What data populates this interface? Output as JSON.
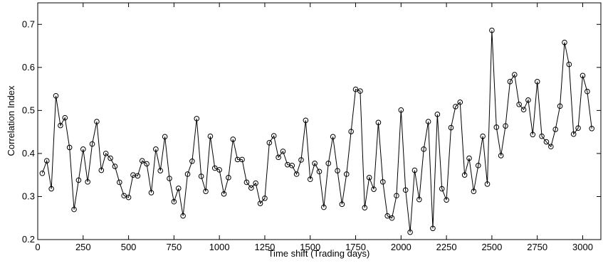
{
  "chart_data": {
    "type": "line",
    "marker": "circle",
    "xlabel": "Time shift (Trading days)",
    "ylabel": "Correlation Index",
    "xlim": [
      0,
      3100
    ],
    "ylim": [
      0.2,
      0.75
    ],
    "xticks": [
      0,
      250,
      500,
      750,
      1000,
      1250,
      1500,
      1750,
      2000,
      2250,
      2500,
      2750,
      3000
    ],
    "yticks": [
      0.2,
      0.3,
      0.4,
      0.5,
      0.6,
      0.7
    ],
    "ytick_labels": [
      "0.2",
      "0.3",
      "0.4",
      "0.5",
      "0.6",
      "0.7"
    ],
    "grid": false,
    "series": [
      {
        "x": [
          25,
          50,
          75,
          100,
          125,
          150,
          175,
          200,
          225,
          250,
          275,
          300,
          325,
          350,
          375,
          400,
          425,
          450,
          475,
          500,
          525,
          550,
          575,
          600,
          625,
          650,
          675,
          700,
          725,
          750,
          775,
          800,
          825,
          850,
          875,
          900,
          925,
          950,
          975,
          1000,
          1025,
          1050,
          1075,
          1100,
          1125,
          1150,
          1175,
          1200,
          1225,
          1250,
          1275,
          1300,
          1325,
          1350,
          1375,
          1400,
          1425,
          1450,
          1475,
          1500,
          1525,
          1550,
          1575,
          1600,
          1625,
          1650,
          1675,
          1700,
          1725,
          1750,
          1775,
          1800,
          1825,
          1850,
          1875,
          1900,
          1925,
          1950,
          1975,
          2000,
          2025,
          2050,
          2075,
          2100,
          2125,
          2150,
          2175,
          2200,
          2225,
          2250,
          2275,
          2300,
          2325,
          2350,
          2375,
          2400,
          2425,
          2450,
          2475,
          2500,
          2525,
          2550,
          2575,
          2600,
          2625,
          2650,
          2675,
          2700,
          2725,
          2750,
          2775,
          2800,
          2825,
          2850,
          2875,
          2900,
          2925,
          2950,
          2975,
          3000,
          3025,
          3050
        ],
        "y": [
          0.354,
          0.383,
          0.318,
          0.534,
          0.465,
          0.483,
          0.414,
          0.27,
          0.338,
          0.41,
          0.334,
          0.422,
          0.474,
          0.361,
          0.4,
          0.389,
          0.37,
          0.333,
          0.302,
          0.298,
          0.35,
          0.348,
          0.383,
          0.376,
          0.309,
          0.41,
          0.36,
          0.439,
          0.342,
          0.288,
          0.319,
          0.255,
          0.352,
          0.382,
          0.481,
          0.347,
          0.312,
          0.44,
          0.366,
          0.362,
          0.306,
          0.344,
          0.433,
          0.386,
          0.386,
          0.333,
          0.32,
          0.331,
          0.284,
          0.296,
          0.425,
          0.441,
          0.391,
          0.405,
          0.374,
          0.372,
          0.352,
          0.385,
          0.477,
          0.34,
          0.377,
          0.358,
          0.275,
          0.377,
          0.439,
          0.36,
          0.282,
          0.352,
          0.451,
          0.549,
          0.545,
          0.274,
          0.344,
          0.317,
          0.472,
          0.334,
          0.255,
          0.25,
          0.302,
          0.501,
          0.315,
          0.217,
          0.361,
          0.293,
          0.41,
          0.474,
          0.226,
          0.491,
          0.318,
          0.292,
          0.46,
          0.509,
          0.519,
          0.35,
          0.389,
          0.312,
          0.372,
          0.44,
          0.329,
          0.686,
          0.461,
          0.395,
          0.464,
          0.567,
          0.583,
          0.514,
          0.502,
          0.524,
          0.444,
          0.567,
          0.44,
          0.427,
          0.416,
          0.456,
          0.51,
          0.658,
          0.607,
          0.445,
          0.459,
          0.581,
          0.544,
          0.458
        ]
      }
    ]
  }
}
